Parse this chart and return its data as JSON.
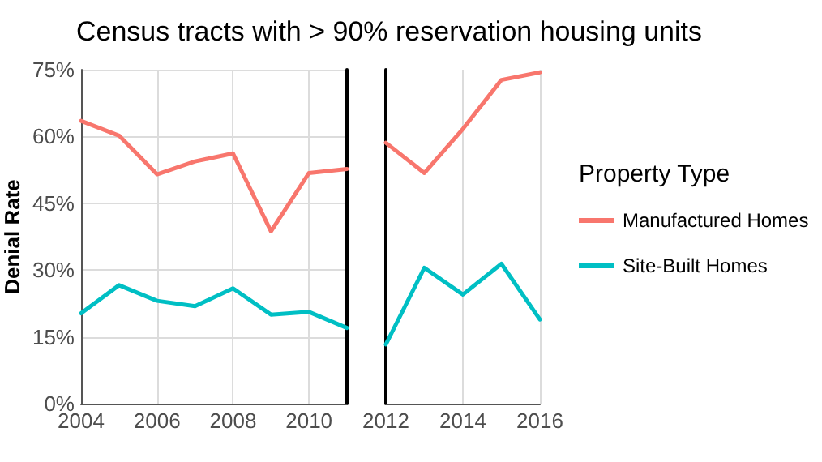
{
  "chart_data": [
    {
      "type": "line",
      "title": "Census tracts with > 90% reservation housing units",
      "ylabel": "Denial Rate",
      "x": [
        2004,
        2005,
        2006,
        2007,
        2008,
        2009,
        2010,
        2011
      ],
      "xlim": [
        2004,
        2011
      ],
      "xticks": [
        2004,
        2006,
        2008,
        2010
      ],
      "ylim": [
        0,
        75
      ],
      "yticks": [
        {
          "value": 0,
          "label": "0%"
        },
        {
          "value": 15,
          "label": "15%"
        },
        {
          "value": 30,
          "label": "30%"
        },
        {
          "value": 45,
          "label": "45%"
        },
        {
          "value": 60,
          "label": "60%"
        },
        {
          "value": 75,
          "label": "75%"
        }
      ],
      "grid": true,
      "legend": false,
      "series": [
        {
          "color": "#f8766d",
          "values": [
            63.5,
            60.2,
            51.5,
            54.4,
            56.2,
            38.7,
            51.8,
            52.7
          ]
        },
        {
          "color": "#00bfc4",
          "values": [
            20.3,
            26.6,
            23.1,
            21.9,
            25.9,
            20.0,
            20.6,
            17.0
          ]
        }
      ]
    },
    {
      "type": "line",
      "x": [
        2012,
        2013,
        2014,
        2015,
        2016
      ],
      "xlim": [
        2012,
        2016
      ],
      "xticks": [
        2012,
        2014,
        2016
      ],
      "ylim": [
        0,
        75
      ],
      "tick_labels": "x",
      "grid": true,
      "legend": "right",
      "legend_title": "Property Type",
      "series": [
        {
          "name": "Manufactured Homes",
          "color": "#f8766d",
          "values": [
            58.6,
            51.8,
            61.7,
            72.7,
            74.4
          ]
        },
        {
          "name": "Site-Built Homes",
          "color": "#00bfc4",
          "values": [
            13.3,
            30.5,
            24.5,
            31.4,
            18.9
          ]
        }
      ]
    }
  ]
}
